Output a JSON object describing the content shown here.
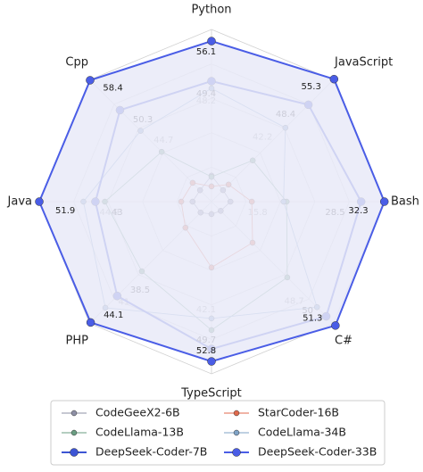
{
  "chart_data": {
    "type": "radar",
    "axes": [
      {
        "name": "Python",
        "rlim": [
          29.25,
          58.05
        ]
      },
      {
        "name": "JavaScript",
        "rlim": [
          22.3,
          55.1
        ]
      },
      {
        "name": "Bash",
        "rlim": [
          4.0,
          32.2
        ]
      },
      {
        "name": "C#",
        "rlim": [
          33.8,
          51.0
        ]
      },
      {
        "name": "TypeScript",
        "rlim": [
          13.0,
          55.9
        ]
      },
      {
        "name": "PHP",
        "rlim": [
          18.6,
          44.3
        ]
      },
      {
        "name": "Java",
        "rlim": [
          24.6,
          51.9
        ]
      },
      {
        "name": "Cpp",
        "rlim": [
          25.5,
          58.5
        ]
      }
    ],
    "rings": 5,
    "grid": true,
    "legend": "bottom",
    "series": [
      {
        "name": "CodeGeeX2-6B",
        "color": "#8e90a6",
        "marker": 3,
        "values": [
          33.6,
          25.4,
          7.1,
          35.1,
          16.1,
          20.9,
          27.6,
          28.6
        ]
      },
      {
        "name": "StarCoder-16B",
        "color": "#e06a4c",
        "marker": 3,
        "values": [
          31.8,
          26.9,
          10.6,
          39.6,
          29.4,
          24.1,
          29.4,
          30.6
        ]
      },
      {
        "name": "CodeLlama-13B",
        "color": "#6a9e82",
        "marker": 3,
        "values": [
          33.4,
          33.4,
          16.3,
          44.5,
          45.0,
          33.3,
          41.5,
          39.0
        ]
      },
      {
        "name": "CodeLlama-34B",
        "color": "#7fa3c6",
        "marker": 3,
        "show_labels": true,
        "label_color": "#999999",
        "values": [
          48.2,
          42.2,
          15.8,
          48.7,
          42.1,
          41.0,
          44.9,
          44.7
        ]
      },
      {
        "name": "DeepSeek-Coder-7B",
        "color": "#3d55d4",
        "marker": 4.5,
        "show_labels": true,
        "label_color": "#222222",
        "values": [
          49.4,
          48.4,
          28.5,
          50.0,
          49.7,
          38.5,
          43.0,
          50.3
        ]
      },
      {
        "name": "DeepSeek-Coder-33B",
        "color": "#4a5de6",
        "marker": 4.5,
        "fill": "#e9eaf8",
        "show_labels": true,
        "label_color": "#222222",
        "values": [
          56.1,
          55.3,
          32.3,
          51.3,
          52.8,
          44.1,
          51.9,
          58.4
        ]
      }
    ]
  }
}
